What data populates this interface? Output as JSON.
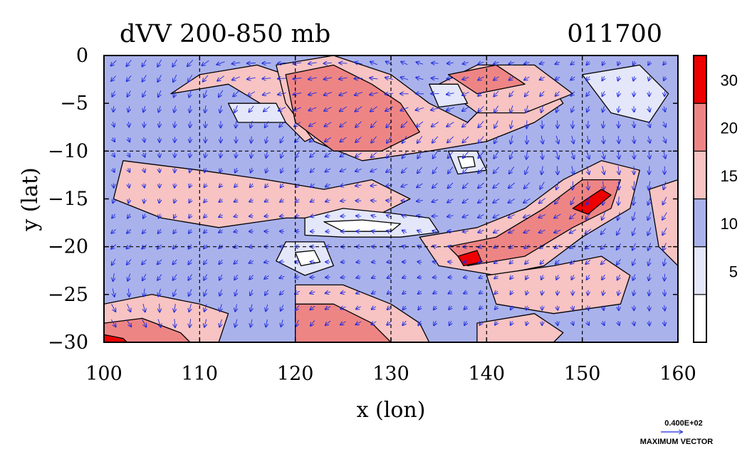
{
  "chart_data": {
    "type": "heatmap",
    "title": "dVV 200-850 mb",
    "subtitle": "011700",
    "xlabel": "x (lon)",
    "ylabel": "y (lat)",
    "xlim": [
      100,
      160
    ],
    "ylim": [
      -30,
      0
    ],
    "x_ticks": [
      "100",
      "110",
      "120",
      "130",
      "140",
      "150",
      "160"
    ],
    "y_ticks": [
      "0",
      "−5",
      "−10",
      "−15",
      "−20",
      "−25",
      "−30"
    ],
    "x_tick_values": [
      100,
      110,
      120,
      130,
      140,
      150,
      160
    ],
    "y_tick_values": [
      0,
      -5,
      -10,
      -15,
      -20,
      -25,
      -30
    ],
    "grid": true,
    "grid_lon": [
      110,
      120,
      130,
      140,
      150
    ],
    "grid_lat": [
      -10,
      -20
    ],
    "colorbar": {
      "labels": [
        "30",
        "20",
        "15",
        "10",
        "5"
      ],
      "label_values": [
        30,
        20,
        15,
        10,
        5
      ],
      "levels": [
        0,
        5,
        10,
        15,
        20,
        30,
        40
      ],
      "colors": [
        "#ffffff",
        "#e4e6fa",
        "#aab2ec",
        "#f7c3c3",
        "#ee8585",
        "#ee0000"
      ]
    },
    "vector_scale": {
      "value": "0.400E+02",
      "label": "MAXIMUM VECTOR"
    },
    "regions": [
      {
        "level": 2,
        "polygon": [
          [
            100,
            0
          ],
          [
            160,
            0
          ],
          [
            160,
            -30
          ],
          [
            100,
            -30
          ]
        ]
      },
      {
        "level": 3,
        "polygon": [
          [
            107,
            -4
          ],
          [
            113,
            -3
          ],
          [
            118,
            -6
          ],
          [
            121,
            -9
          ],
          [
            123,
            -8
          ],
          [
            125,
            -6
          ],
          [
            122,
            -3
          ],
          [
            116,
            -1
          ],
          [
            110,
            -2
          ]
        ]
      },
      {
        "level": 3,
        "polygon": [
          [
            102,
            -11
          ],
          [
            110,
            -12
          ],
          [
            117,
            -13
          ],
          [
            123,
            -14
          ],
          [
            128,
            -13
          ],
          [
            132,
            -15
          ],
          [
            128,
            -17
          ],
          [
            119,
            -17
          ],
          [
            112,
            -18
          ],
          [
            106,
            -17
          ],
          [
            101,
            -15
          ]
        ]
      },
      {
        "level": 3,
        "polygon": [
          [
            118,
            -1
          ],
          [
            124,
            0
          ],
          [
            130,
            -2
          ],
          [
            134,
            -5
          ],
          [
            138,
            -7
          ],
          [
            141,
            -4
          ],
          [
            146,
            -2
          ],
          [
            148,
            -5
          ],
          [
            145,
            -7
          ],
          [
            140,
            -9
          ],
          [
            134,
            -10
          ],
          [
            127,
            -11
          ],
          [
            122,
            -9
          ],
          [
            119,
            -5
          ]
        ]
      },
      {
        "level": 4,
        "polygon": [
          [
            119,
            -2
          ],
          [
            124,
            -1
          ],
          [
            128,
            -3
          ],
          [
            131,
            -5
          ],
          [
            133,
            -8
          ],
          [
            129,
            -10
          ],
          [
            124,
            -10
          ],
          [
            120,
            -7
          ]
        ]
      },
      {
        "level": 3,
        "polygon": [
          [
            135,
            -3
          ],
          [
            139,
            -1
          ],
          [
            145,
            -1
          ],
          [
            149,
            -4
          ],
          [
            144,
            -6
          ],
          [
            139,
            -6
          ]
        ]
      },
      {
        "level": 4,
        "polygon": [
          [
            136,
            -2
          ],
          [
            141,
            -1
          ],
          [
            144,
            -3
          ],
          [
            139,
            -4
          ]
        ]
      },
      {
        "level": 3,
        "polygon": [
          [
            133,
            -19
          ],
          [
            139,
            -18
          ],
          [
            144,
            -16
          ],
          [
            148,
            -13
          ],
          [
            152,
            -11
          ],
          [
            156,
            -12
          ],
          [
            155,
            -16
          ],
          [
            150,
            -19
          ],
          [
            146,
            -22
          ],
          [
            141,
            -23
          ],
          [
            135,
            -22
          ]
        ]
      },
      {
        "level": 4,
        "polygon": [
          [
            136,
            -20
          ],
          [
            141,
            -19
          ],
          [
            146,
            -16
          ],
          [
            150,
            -13
          ],
          [
            154,
            -13
          ],
          [
            153,
            -16
          ],
          [
            149,
            -18
          ],
          [
            144,
            -21
          ],
          [
            138,
            -22
          ]
        ]
      },
      {
        "level": 5,
        "polygon": [
          [
            137,
            -21
          ],
          [
            139,
            -20.4
          ],
          [
            139.5,
            -21.6
          ],
          [
            137.6,
            -22
          ]
        ]
      },
      {
        "level": 5,
        "polygon": [
          [
            149,
            -16
          ],
          [
            152,
            -14
          ],
          [
            153,
            -14.6
          ],
          [
            150.6,
            -16.6
          ]
        ]
      },
      {
        "level": 3,
        "polygon": [
          [
            140,
            -23
          ],
          [
            147,
            -22
          ],
          [
            152,
            -21
          ],
          [
            155,
            -23
          ],
          [
            154,
            -26
          ],
          [
            147,
            -27
          ],
          [
            141,
            -26
          ]
        ]
      },
      {
        "level": 3,
        "polygon": [
          [
            100,
            -26
          ],
          [
            105,
            -25
          ],
          [
            110,
            -26
          ],
          [
            113,
            -27
          ],
          [
            112,
            -30
          ],
          [
            100,
            -30
          ]
        ]
      },
      {
        "level": 4,
        "polygon": [
          [
            100,
            -28
          ],
          [
            104,
            -27.5
          ],
          [
            108,
            -29
          ],
          [
            109,
            -30
          ],
          [
            100,
            -30
          ]
        ]
      },
      {
        "level": 5,
        "polygon": [
          [
            100,
            -29.2
          ],
          [
            102,
            -29.6
          ],
          [
            102.4,
            -30
          ],
          [
            100,
            -30
          ]
        ]
      },
      {
        "level": 3,
        "polygon": [
          [
            120,
            -24
          ],
          [
            125,
            -24
          ],
          [
            130,
            -26
          ],
          [
            133,
            -28
          ],
          [
            134,
            -30
          ],
          [
            120,
            -30
          ]
        ]
      },
      {
        "level": 4,
        "polygon": [
          [
            120,
            -26
          ],
          [
            124,
            -26
          ],
          [
            128,
            -28
          ],
          [
            130,
            -30
          ],
          [
            120,
            -30
          ]
        ]
      },
      {
        "level": 3,
        "polygon": [
          [
            157,
            -14
          ],
          [
            160,
            -13
          ],
          [
            160,
            -22
          ],
          [
            158,
            -20
          ]
        ]
      },
      {
        "level": 3,
        "polygon": [
          [
            139,
            -28
          ],
          [
            145,
            -27
          ],
          [
            148,
            -29
          ],
          [
            147,
            -30
          ],
          [
            139,
            -30
          ]
        ]
      },
      {
        "level": 1,
        "polygon": [
          [
            121,
            -17
          ],
          [
            125,
            -16
          ],
          [
            130,
            -16.5
          ],
          [
            134,
            -17
          ],
          [
            135,
            -18.5
          ],
          [
            131,
            -19
          ],
          [
            125,
            -19
          ],
          [
            121,
            -18.8
          ]
        ]
      },
      {
        "level": 0,
        "polygon": [
          [
            123,
            -17.4
          ],
          [
            127,
            -17.2
          ],
          [
            131,
            -17.6
          ],
          [
            130,
            -18.4
          ],
          [
            125,
            -18.4
          ]
        ]
      },
      {
        "level": 1,
        "polygon": [
          [
            119,
            -19.5
          ],
          [
            123,
            -19.5
          ],
          [
            124,
            -22
          ],
          [
            121,
            -23
          ],
          [
            118,
            -21.5
          ]
        ]
      },
      {
        "level": 0,
        "polygon": [
          [
            120,
            -20.6
          ],
          [
            122,
            -20.4
          ],
          [
            122.6,
            -21.6
          ],
          [
            120.6,
            -22
          ]
        ]
      },
      {
        "level": 1,
        "polygon": [
          [
            136,
            -10
          ],
          [
            139,
            -10
          ],
          [
            140,
            -12
          ],
          [
            137,
            -12.4
          ]
        ]
      },
      {
        "level": 0,
        "polygon": [
          [
            137,
            -10.6
          ],
          [
            138.6,
            -10.6
          ],
          [
            138.8,
            -11.6
          ],
          [
            137.4,
            -11.8
          ]
        ]
      },
      {
        "level": 1,
        "polygon": [
          [
            150,
            -2
          ],
          [
            156,
            -1
          ],
          [
            159,
            -4
          ],
          [
            157,
            -7
          ],
          [
            153,
            -6
          ]
        ]
      },
      {
        "level": 1,
        "polygon": [
          [
            113,
            -5
          ],
          [
            118,
            -5
          ],
          [
            119,
            -7
          ],
          [
            114,
            -7
          ]
        ]
      },
      {
        "level": 1,
        "polygon": [
          [
            134,
            -3
          ],
          [
            137,
            -3
          ],
          [
            138,
            -5
          ],
          [
            135,
            -5.4
          ]
        ]
      }
    ]
  }
}
